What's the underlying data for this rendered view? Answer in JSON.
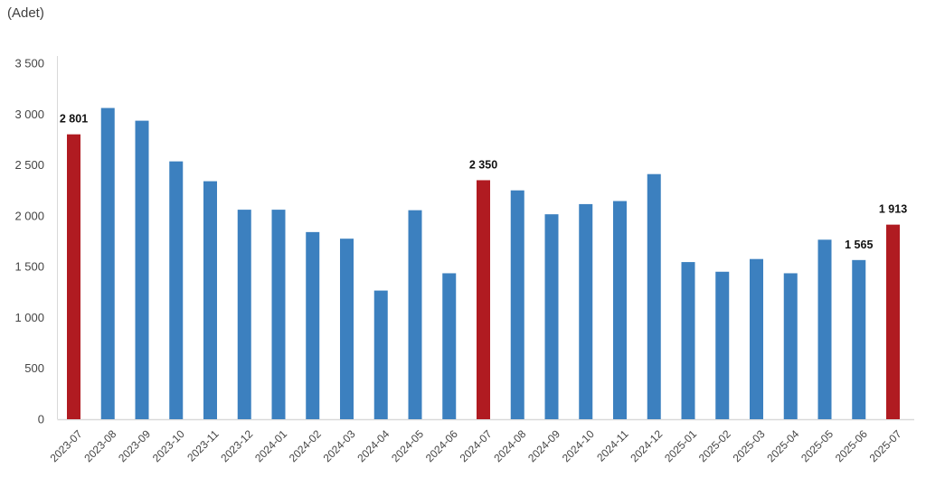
{
  "chart_data": {
    "type": "bar",
    "title": "",
    "unit_label": "(Adet)",
    "xlabel": "",
    "ylabel": "(Adet)",
    "categories": [
      "2023-07",
      "2023-08",
      "2023-09",
      "2023-10",
      "2023-11",
      "2023-12",
      "2024-01",
      "2024-02",
      "2024-03",
      "2024-04",
      "2024-05",
      "2024-06",
      "2024-07",
      "2024-08",
      "2024-09",
      "2024-10",
      "2024-11",
      "2024-12",
      "2025-01",
      "2025-02",
      "2025-03",
      "2025-04",
      "2025-05",
      "2025-06",
      "2025-07"
    ],
    "values": [
      2801,
      3060,
      2935,
      2535,
      2340,
      2060,
      2060,
      1840,
      1775,
      1265,
      2055,
      1435,
      2350,
      2250,
      2015,
      2115,
      2145,
      2410,
      1545,
      1450,
      1575,
      1435,
      1765,
      1565,
      1913
    ],
    "highlighted_categories": [
      "2023-07",
      "2024-07",
      "2025-07"
    ],
    "data_labels": [
      {
        "category": "2023-07",
        "text": "2 801"
      },
      {
        "category": "2024-07",
        "text": "2 350"
      },
      {
        "category": "2025-06",
        "text": "1 565"
      },
      {
        "category": "2025-07",
        "text": "1 913"
      }
    ],
    "ytick_labels": [
      "0",
      "500",
      "1 000",
      "1 500",
      "2 000",
      "2 500",
      "3 000",
      "3 500"
    ],
    "ylim": [
      0,
      3500
    ],
    "ytick_step": 500,
    "grid": false,
    "legend": "none",
    "colors": {
      "bar_default": "#3C80BF",
      "bar_highlight": "#B01B21",
      "axis_line": "#D9D9D9",
      "tick_label": "#444444",
      "data_label": "#111111"
    }
  }
}
